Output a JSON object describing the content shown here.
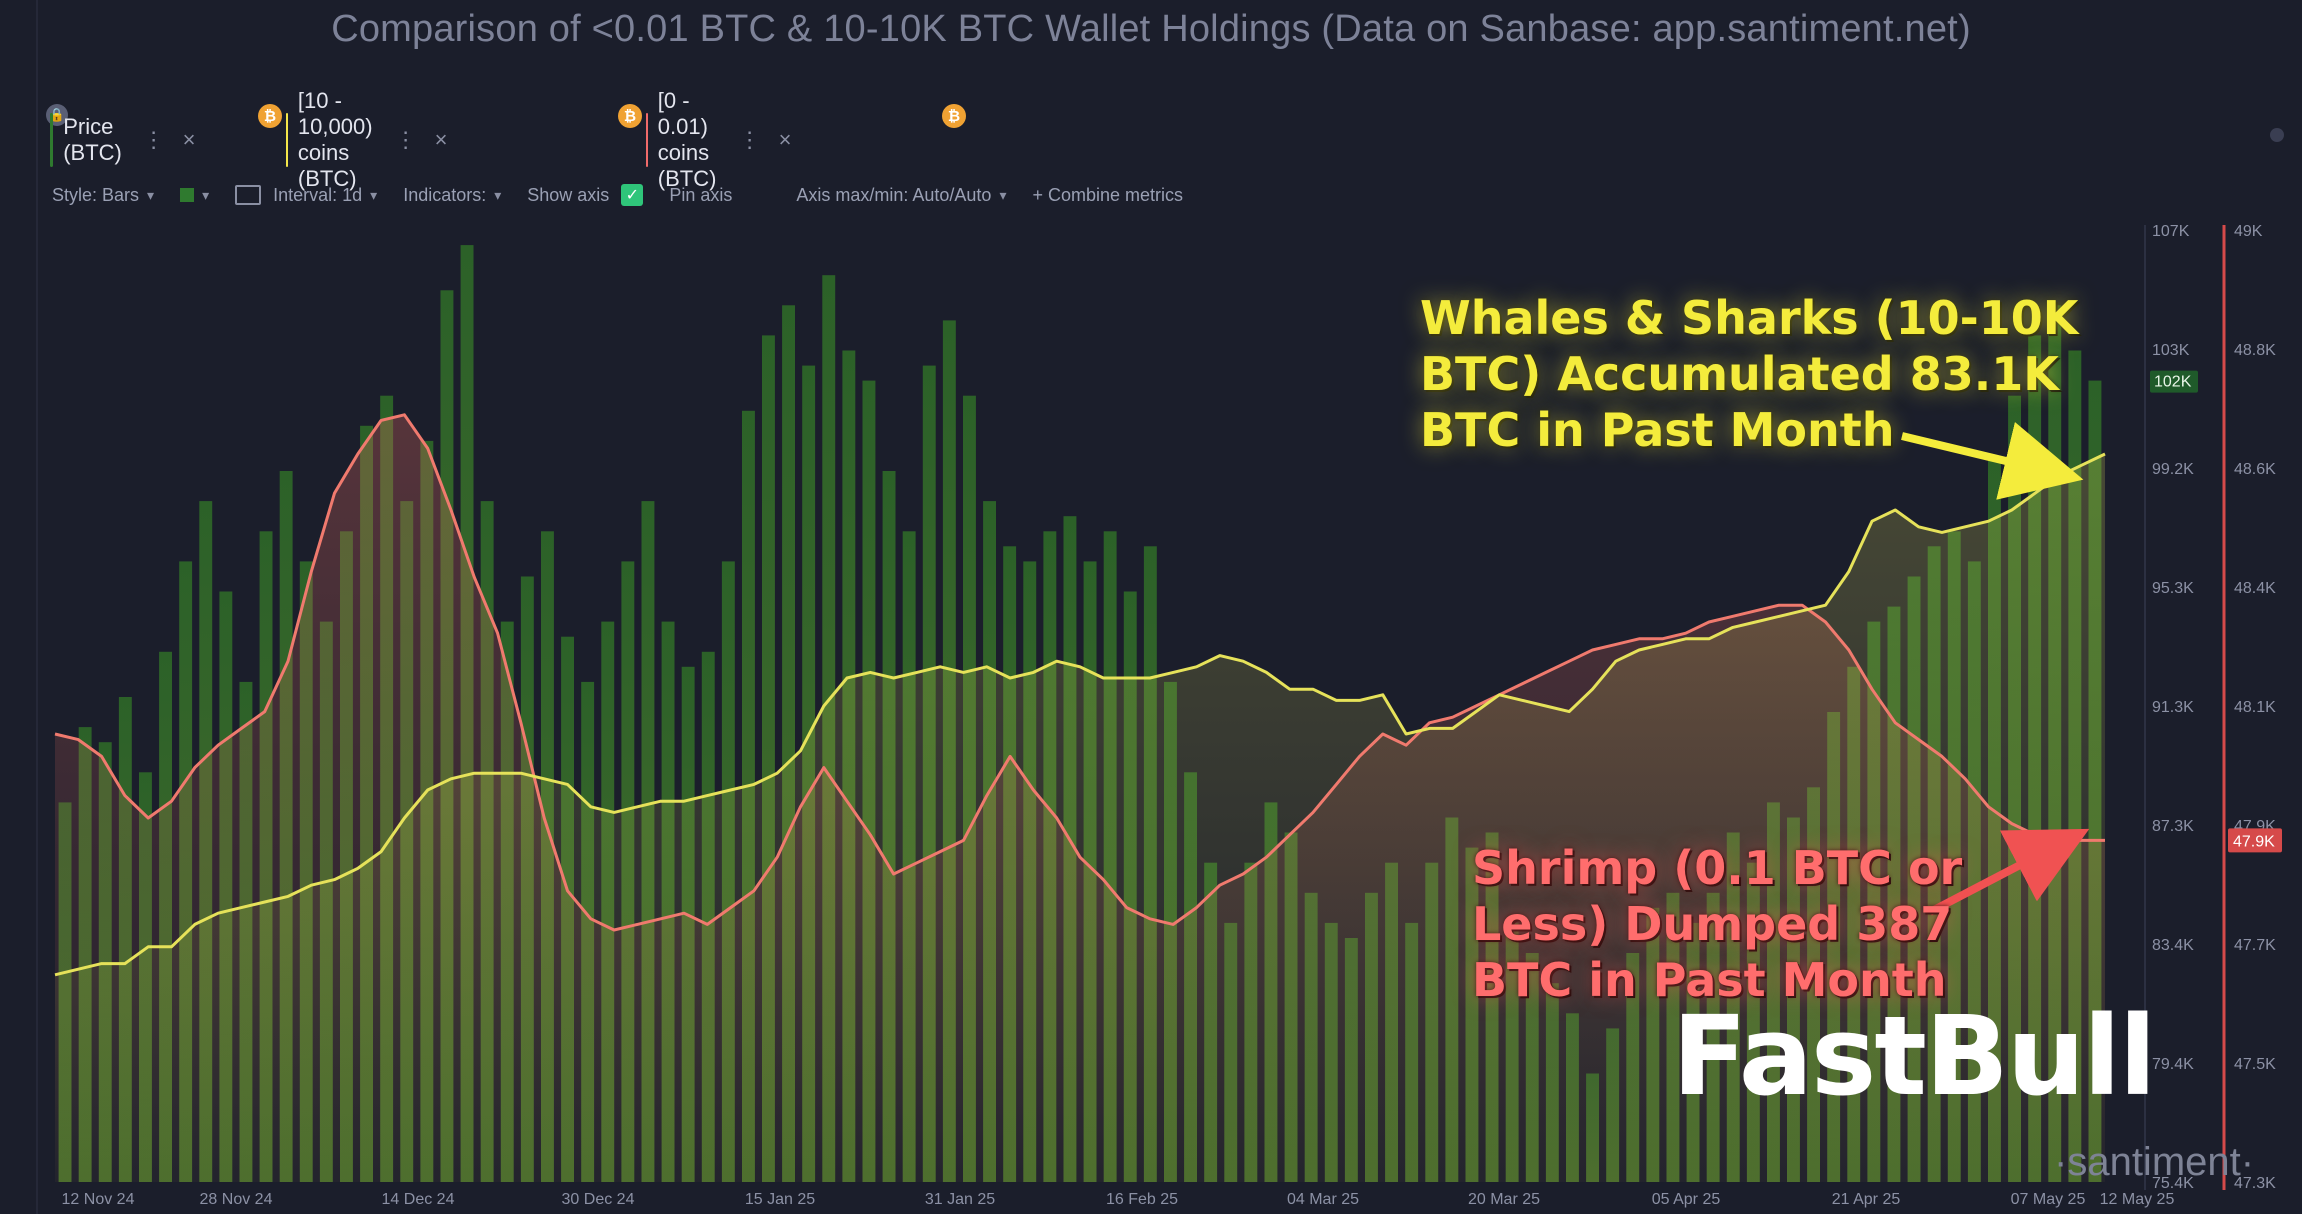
{
  "title": "Comparison of <0.01 BTC & 10-10K BTC Wallet Holdings (Data on Sanbase: app.santiment.net)",
  "tabs": [
    {
      "label": "Price (BTC)",
      "color": "#2f7a2f",
      "badge": "₿"
    },
    {
      "label": "[10 - 10,000) coins (BTC)",
      "color": "#f4e64a",
      "badge": "₿"
    },
    {
      "label": "[0 - 0.01) coins (BTC)",
      "color": "#f06a6a",
      "badge": "₿"
    }
  ],
  "tab_more": "⋮",
  "tab_close": "×",
  "toolbar": {
    "style": "Style: Bars",
    "interval": "Interval: 1d",
    "indicators": "Indicators:",
    "show_axis": "Show axis",
    "pin_axis": "Pin axis",
    "axis_maxmin": "Axis max/min: Auto/Auto",
    "combine": "+ Combine metrics"
  },
  "annotations": {
    "whales": "Whales & Sharks (10-10K\nBTC) Accumulated 83.1K\nBTC in Past Month",
    "shrimp": "Shrimp (0.1 BTC or\nLess) Dumped 387\nBTC in Past Month"
  },
  "watermark": "FastBull",
  "brand": "·santiment·",
  "colors": {
    "background": "#1b1e2b",
    "price_bars": "#2f7a2f",
    "whales_line": "#e6e25a",
    "shrimp_line": "#f07a6e"
  },
  "chart_data": {
    "type": "bar",
    "x_ticks": [
      "12 Nov 24",
      "28 Nov 24",
      "14 Dec 24",
      "30 Dec 24",
      "15 Jan 25",
      "31 Jan 25",
      "16 Feb 25",
      "04 Mar 25",
      "20 Mar 25",
      "05 Apr 25",
      "21 Apr 25",
      "07 May 25",
      "12 May 25"
    ],
    "y_axis_left": {
      "ticks": [
        "107K",
        "103K",
        "99.2K",
        "95.3K",
        "91.3K",
        "87.3K",
        "83.4K",
        "79.4K",
        "75.4K"
      ],
      "current_label": "102K"
    },
    "y_axis_right": {
      "ticks": [
        "49K",
        "48.8K",
        "48.6K",
        "48.4K",
        "48.1K",
        "47.9K",
        "47.7K",
        "47.5K",
        "47.3K"
      ],
      "current_label": "47.9K"
    },
    "series": [
      {
        "name": "Price (BTC)",
        "type": "bar",
        "values": [
          88000,
          90500,
          90000,
          91500,
          89000,
          93000,
          96000,
          98000,
          95000,
          92000,
          97000,
          99000,
          96000,
          94000,
          97000,
          100500,
          101500,
          98000,
          100000,
          105000,
          106500,
          98000,
          94000,
          95500,
          97000,
          93500,
          92000,
          94000,
          96000,
          98000,
          94000,
          92500,
          93000,
          96000,
          101000,
          103500,
          104500,
          102500,
          105500,
          103000,
          102000,
          99000,
          97000,
          102500,
          104000,
          101500,
          98000,
          96500,
          96000,
          97000,
          97500,
          96000,
          97000,
          95000,
          96500,
          92000,
          89000,
          86000,
          84000,
          86000,
          88000,
          87000,
          85000,
          84000,
          83500,
          85000,
          86000,
          84000,
          86000,
          87500,
          86500,
          87000,
          84000,
          83000,
          82000,
          81000,
          79000,
          80500,
          83000,
          84500,
          85000,
          84000,
          85000,
          87000,
          86000,
          88000,
          87500,
          88500,
          91000,
          92500,
          94000,
          94500,
          95500,
          96500,
          97000,
          96000,
          99500,
          101500,
          103500,
          104500,
          103000,
          102000
        ]
      },
      {
        "name": "[10 - 10,000) coins (BTC)",
        "type": "line",
        "values": [
          47670,
          47680,
          47690,
          47690,
          47720,
          47720,
          47760,
          47780,
          47790,
          47800,
          47810,
          47830,
          47840,
          47860,
          47890,
          47950,
          48000,
          48020,
          48030,
          48030,
          48030,
          48020,
          48010,
          47970,
          47960,
          47970,
          47980,
          47980,
          47990,
          48000,
          48010,
          48030,
          48070,
          48150,
          48200,
          48210,
          48200,
          48210,
          48220,
          48210,
          48220,
          48200,
          48210,
          48230,
          48220,
          48200,
          48200,
          48200,
          48210,
          48220,
          48240,
          48230,
          48210,
          48180,
          48180,
          48160,
          48160,
          48170,
          48100,
          48110,
          48110,
          48140,
          48170,
          48160,
          48150,
          48140,
          48180,
          48230,
          48250,
          48260,
          48270,
          48270,
          48290,
          48300,
          48310,
          48320,
          48330,
          48390,
          48480,
          48500,
          48470,
          48460,
          48470,
          48480,
          48500,
          48530,
          48560,
          48580,
          48600
        ]
      },
      {
        "name": "[0 - 0.01) coins (BTC)",
        "type": "line",
        "values": [
          48100,
          48090,
          48060,
          47990,
          47950,
          47980,
          48040,
          48080,
          48110,
          48140,
          48230,
          48390,
          48530,
          48600,
          48660,
          48670,
          48610,
          48500,
          48380,
          48280,
          48120,
          47950,
          47820,
          47770,
          47750,
          47760,
          47770,
          47780,
          47760,
          47790,
          47820,
          47880,
          47970,
          48040,
          47980,
          47920,
          47850,
          47870,
          47890,
          47910,
          47990,
          48060,
          48000,
          47950,
          47880,
          47840,
          47790,
          47770,
          47760,
          47790,
          47830,
          47850,
          47880,
          47920,
          47960,
          48010,
          48060,
          48100,
          48080,
          48120,
          48130,
          48150,
          48170,
          48190,
          48210,
          48230,
          48250,
          48260,
          48270,
          48270,
          48280,
          48300,
          48310,
          48320,
          48330,
          48330,
          48300,
          48250,
          48180,
          48120,
          48090,
          48060,
          48020,
          47970,
          47940,
          47920,
          47910,
          47910,
          47910
        ]
      }
    ],
    "ylim_left": [
      75400,
      107000
    ],
    "ylim_right": [
      47300,
      49000
    ],
    "grid": false,
    "legend": "top-left"
  }
}
